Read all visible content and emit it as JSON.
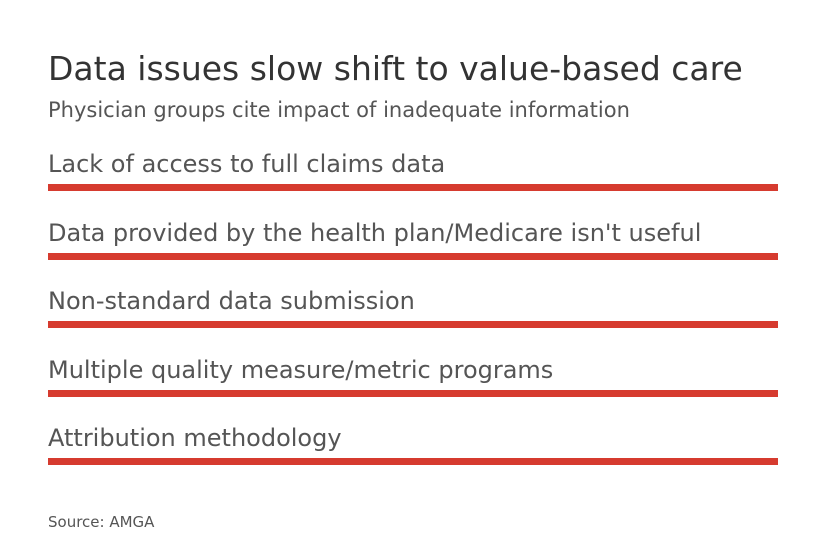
{
  "chart": {
    "title": "Data issues slow shift to value-based care",
    "subtitle": "Physician groups cite impact of inadequate information",
    "source": "Source: AMGA"
  },
  "colors": {
    "bar": "#d63b2f"
  },
  "chart_data": {
    "type": "bar",
    "orientation": "horizontal",
    "title": "Data issues slow shift to value-based care",
    "subtitle": "Physician groups cite impact of inadequate information",
    "categories": [
      "Lack of access to full claims data",
      "Data provided by the health plan/Medicare isn't useful",
      "Non-standard data submission",
      "Multiple quality measure/metric programs",
      "Attribution methodology"
    ],
    "values": [
      100,
      100,
      100,
      100,
      100
    ],
    "xlim": [
      0,
      100
    ],
    "grid": false,
    "legend": "none",
    "source": "Source: AMGA"
  }
}
